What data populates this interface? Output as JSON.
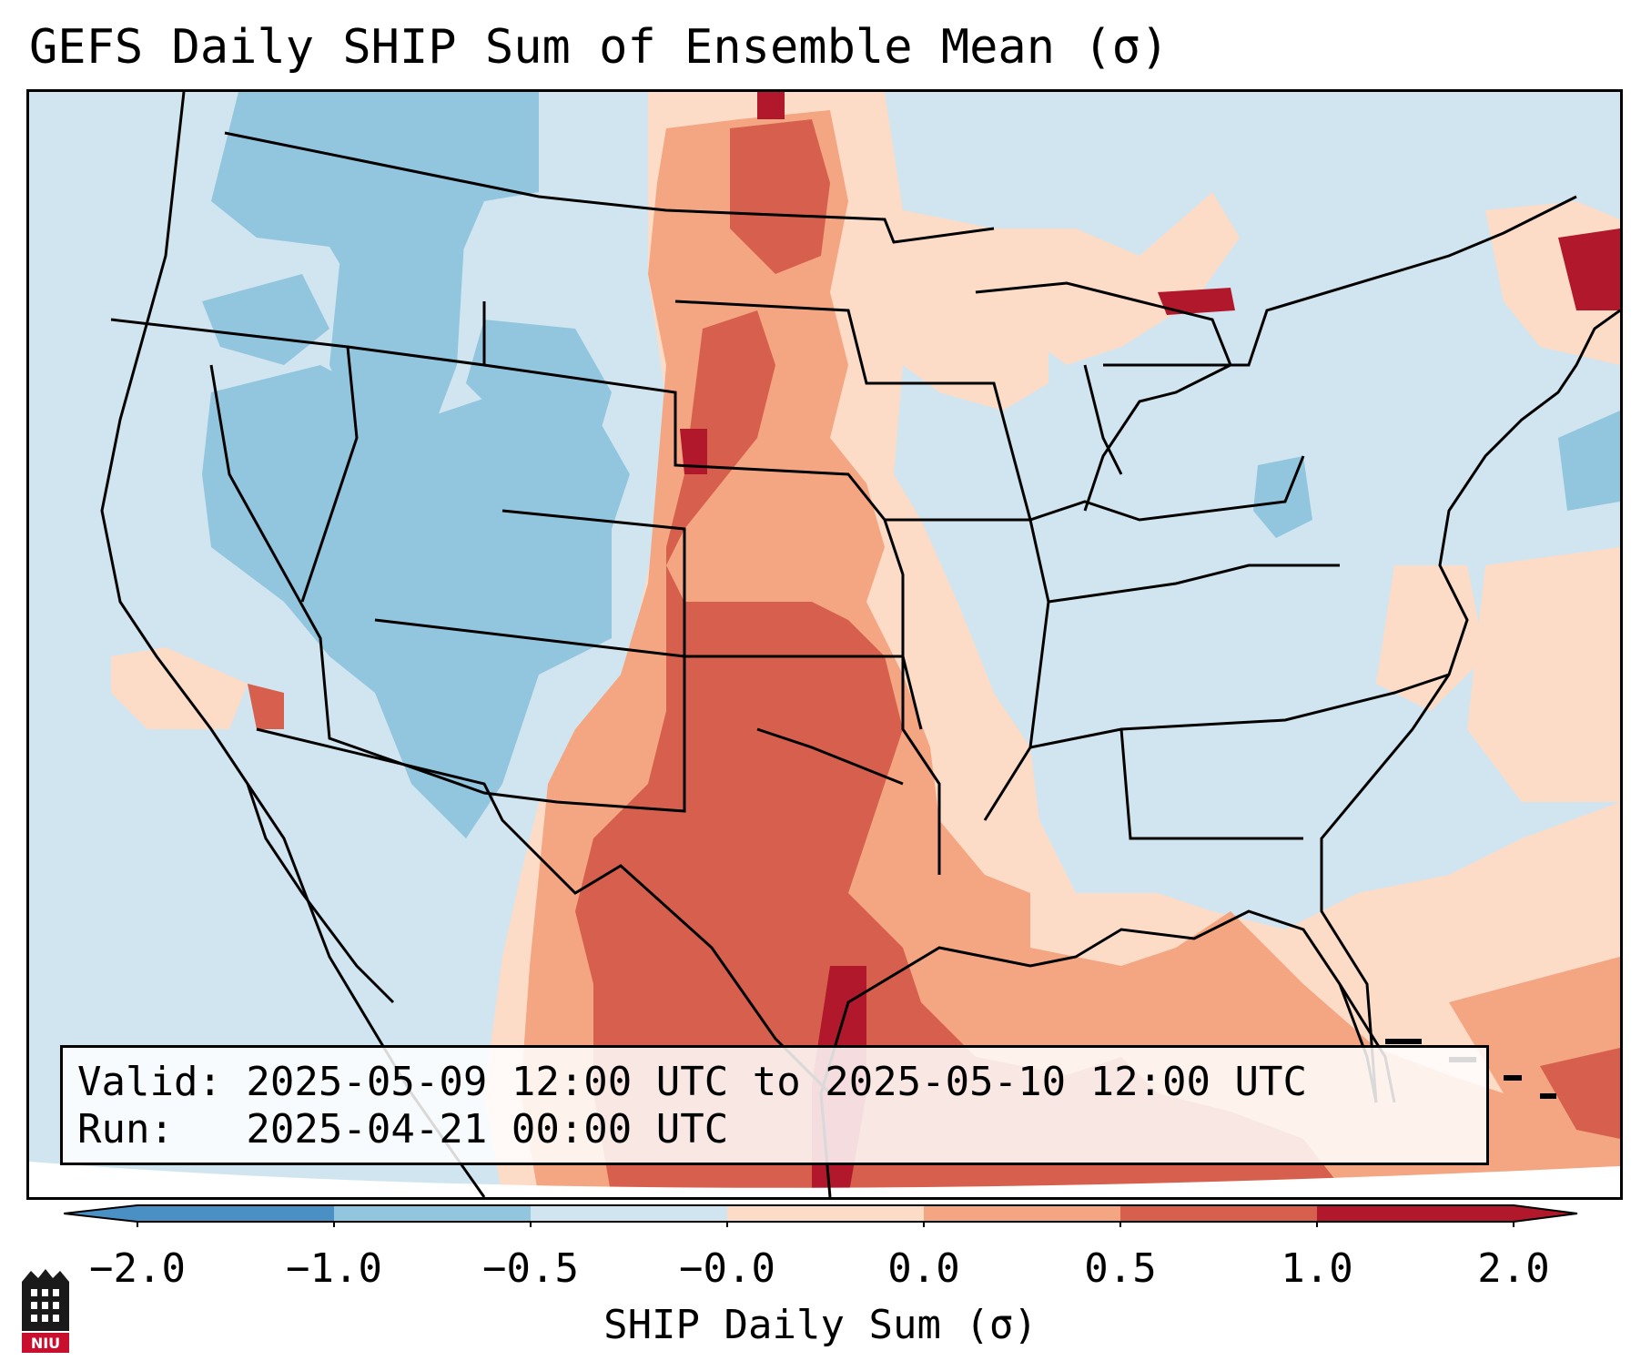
{
  "title": "GEFS Daily SHIP Sum of Ensemble Mean (σ)",
  "info": {
    "valid_line": "Valid: 2025-05-09 12:00 UTC to 2025-05-10 12:00 UTC",
    "run_line": "Run:   2025-04-21 00:00 UTC"
  },
  "colorbar": {
    "label": "SHIP Daily Sum (σ)",
    "ticks": [
      "−2.0",
      "−1.0",
      "−0.5",
      "−0.0",
      "0.0",
      "0.5",
      "1.0",
      "2.0"
    ],
    "colors": [
      "#4a90c4",
      "#92c5de",
      "#d1e5f0",
      "#d1e5f0",
      "#fcdbc7",
      "#f4a582",
      "#d6604d",
      "#b2182b"
    ],
    "extend": "both"
  },
  "map": {
    "colors": {
      "strong_negative": "#92c5de",
      "weak_negative": "#d1e5f0",
      "weak_positive": "#fcdbc7",
      "moderate_positive": "#f4a582",
      "strong_positive": "#d6604d",
      "extreme_positive": "#b2182b"
    }
  },
  "logo": {
    "text": "NIU",
    "icon": "niu-logo-icon"
  }
}
